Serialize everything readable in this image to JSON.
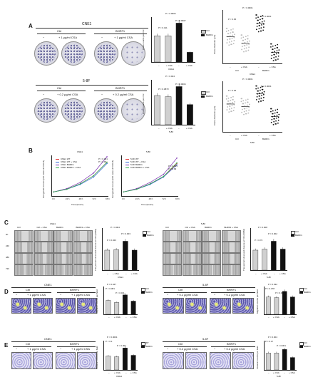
{
  "panels": {
    "A": {
      "letter": "A",
      "cne1": {
        "cell_line": "CNE1",
        "ctrl": "Ctrl",
        "bhrf1": "BHRF1",
        "neg": "−",
        "csa": "+ 1 μg/ml CSA",
        "bar_p_top": "P = 0.0004",
        "bar_p_left": "P = 0.411",
        "bar_p_right": "P = 0.0007",
        "scatter_p_top": "P < 0.0001",
        "scatter_p_left": "P < 0.05",
        "scatter_p_right": "P < 0.0001",
        "ylabel_bar": "Clone counts per cm²",
        "ylabel_scatter": "Clone diameter (μm)",
        "xgroup": "CNE1"
      },
      "f58": {
        "cell_line": "5-8F",
        "ctrl": "Ctrl",
        "bhrf1": "BHRF1",
        "neg": "−",
        "csa": "+ 0.2 μg/ml CSA",
        "bar_p_top": "P = 0.024",
        "bar_p_left": "P = 0.3873",
        "bar_p_right": "P = 0.0004",
        "scatter_p_top": "P < 0.0001",
        "scatter_p_left": "P < 0.25",
        "scatter_p_right": "P < 0.0001",
        "ylabel_bar": "Clone counts per cm²",
        "ylabel_scatter": "Clone diameter (μm)",
        "xgroup": "5-8F"
      },
      "legend": {
        "ctrl": "Ctrl",
        "bhrf1": "BHRF1",
        "csa": "+ CSA"
      }
    },
    "B": {
      "letter": "B",
      "cne1": {
        "title": "CNE1",
        "ylabel": "Cell growth curves (OD value of CCK-8)",
        "xlabel": "Time (hours)",
        "p1": "P = 0.031",
        "p2": "P = 0.93",
        "legend": [
          "CNE1 WT",
          "CNE1 WT + CSA",
          "CNE1 BHRF1",
          "CNE1 BHRF1 + CSA"
        ]
      },
      "f58": {
        "title": "5-8F",
        "ylabel": "Cell growth curves (OD value of CCK-8)",
        "xlabel": "Time (hours)",
        "p1": "P = 0.045",
        "p2": "P = 0.99",
        "legend": [
          "5-8F WT",
          "5-8F WT + CSA",
          "5-8F BHRF1",
          "5-8F BHRF1 + CSA"
        ]
      },
      "ticks": [
        "0 h",
        "24 h",
        "48 h",
        "72 h",
        "96 h"
      ]
    },
    "C": {
      "letter": "C",
      "cne1": {
        "title": "CNE1",
        "cols": [
          "Ctrl",
          "Ctrl + CSA",
          "BHRF1",
          "BHRF1 + CSA"
        ],
        "p_top": "P = 0.004",
        "p_left": "P = 0.323",
        "p_right": "P = 0.003",
        "ylabel": "The percent of wound closure at 72h (100%)"
      },
      "f58": {
        "title": "5-8F",
        "cols": [
          "Ctrl",
          "Ctrl + CSA",
          "BHRF1",
          "BHRF1 + CSA"
        ],
        "p_top": "P = 0.008",
        "p_left": "P = 0.72",
        "p_right": "P = 0.002",
        "ylabel": "The percent of wound closure at 72h (100%)"
      },
      "rows": [
        "0h",
        "24h",
        "48h",
        "72h"
      ],
      "csa": "+ CSA",
      "neg": "−"
    },
    "D": {
      "letter": "D",
      "cne1": {
        "title": "CNE1",
        "ctrl": "Ctrl",
        "bhrf1": "BHRF1",
        "neg": "−",
        "csa": "+ 1 μg/ml CSA",
        "p_top": "P = 0.047",
        "p_left": "P = 0.381",
        "p_right": "P = 0.011",
        "ylabel": "Migration counts per field"
      },
      "f58": {
        "title": "5-8F",
        "ctrl": "Ctrl",
        "bhrf1": "BHRF1",
        "neg": "−",
        "csa": "+ 0.2 μg/ml CSA",
        "p_top": "P = 0.032",
        "p_left": "P = 0.478",
        "p_right": "P = 0.008",
        "ylabel": "Migration counts per field"
      }
    },
    "E": {
      "letter": "E",
      "cne1": {
        "title": "CNE1",
        "ctrl": "Ctrl",
        "bhrf1": "BHRF1",
        "neg": "−",
        "csa": "+ 1 μg/ml CSA",
        "p_top": "P < 0.0001",
        "p_left": "P = 0.1",
        "p_right": "P < 0.001",
        "ylabel": "Invasion counts per field"
      },
      "f58": {
        "title": "5-8F",
        "ctrl": "Ctrl",
        "bhrf1": "BHRF1",
        "neg": "−",
        "csa": "+ 0.2 μg/ml CSA",
        "p_top": "P = 0.004",
        "p_left": "P = 0.17",
        "p_right": "P = 0.001",
        "ylabel": "Invasion counts per field"
      },
      "legend_wt": "WT"
    }
  },
  "chart_data": [
    {
      "type": "bar",
      "title": "CNE1",
      "ylabel": "Clone counts per cm²",
      "categories": [
        "Ctrl −",
        "Ctrl + CSA",
        "BHRF1 −",
        "BHRF1 + CSA"
      ],
      "values": [
        35,
        35,
        52,
        13
      ],
      "ylim": [
        0,
        60
      ]
    },
    {
      "type": "scatter",
      "ylabel": "Clone diameter (μm)",
      "categories": [
        "Ctrl −",
        "Ctrl + CSA",
        "BHRF1 −",
        "BHRF1 + CSA"
      ],
      "values": [
        60,
        45,
        90,
        25
      ],
      "ylim": [
        0,
        120
      ]
    },
    {
      "type": "bar",
      "title": "5-8F",
      "ylabel": "Clone counts per cm²",
      "categories": [
        "Ctrl −",
        "Ctrl + CSA",
        "BHRF1 −",
        "BHRF1 + CSA"
      ],
      "values": [
        130,
        125,
        170,
        90
      ],
      "ylim": [
        0,
        200
      ]
    },
    {
      "type": "scatter",
      "ylabel": "Clone diameter (μm)",
      "categories": [
        "Ctrl −",
        "Ctrl + CSA",
        "BHRF1 −",
        "BHRF1 + CSA"
      ],
      "values": [
        55,
        50,
        75,
        30
      ],
      "ylim": [
        0,
        100
      ]
    },
    {
      "type": "line",
      "title": "CNE1",
      "xlabel": "Time (hours)",
      "ylabel": "Cell growth curves (OD value of CCK-8)",
      "x": [
        0,
        24,
        48,
        72,
        96
      ],
      "series": [
        {
          "name": "CNE1 WT",
          "values": [
            0.3,
            0.5,
            0.9,
            1.5,
            2.5
          ]
        },
        {
          "name": "CNE1 WT + CSA",
          "values": [
            0.3,
            0.5,
            0.85,
            1.4,
            2.4
          ]
        },
        {
          "name": "CNE1 BHRF1",
          "values": [
            0.3,
            0.55,
            1.0,
            1.7,
            2.9
          ]
        },
        {
          "name": "CNE1 BHRF1 + CSA",
          "values": [
            0.3,
            0.5,
            0.9,
            1.5,
            2.5
          ]
        }
      ],
      "ylim": [
        0,
        3
      ]
    },
    {
      "type": "line",
      "title": "5-8F",
      "xlabel": "Time (hours)",
      "ylabel": "Cell growth curves (OD value of CCK-8)",
      "x": [
        0,
        24,
        48,
        72,
        96
      ],
      "series": [
        {
          "name": "5-8F WT",
          "values": [
            0.3,
            0.5,
            0.9,
            1.4,
            2.4
          ]
        },
        {
          "name": "5-8F WT + CSA",
          "values": [
            0.3,
            0.5,
            0.85,
            1.4,
            2.3
          ]
        },
        {
          "name": "5-8F BHRF1",
          "values": [
            0.3,
            0.55,
            1.0,
            1.6,
            2.8
          ]
        },
        {
          "name": "5-8F BHRF1 + CSA",
          "values": [
            0.3,
            0.5,
            0.9,
            1.45,
            2.45
          ]
        }
      ],
      "ylim": [
        0,
        3
      ]
    },
    {
      "type": "bar",
      "title": "CNE1",
      "ylabel": "The percent of wound closure at 72h (100%)",
      "categories": [
        "Ctrl −",
        "Ctrl + CSA",
        "BHRF1 −",
        "BHRF1 + CSA"
      ],
      "values": [
        0.38,
        0.39,
        0.55,
        0.38
      ],
      "ylim": [
        0,
        0.8
      ]
    },
    {
      "type": "bar",
      "title": "5-8F",
      "ylabel": "The percent of wound closure at 72h (100%)",
      "categories": [
        "Ctrl −",
        "Ctrl + CSA",
        "BHRF1 −",
        "BHRF1 + CSA"
      ],
      "values": [
        0.38,
        0.4,
        0.55,
        0.4
      ],
      "ylim": [
        0,
        0.8
      ]
    },
    {
      "type": "bar",
      "title": "CNE1",
      "ylabel": "Migration counts per field",
      "categories": [
        "Ctrl −",
        "Ctrl + CSA",
        "BHRF1 −",
        "BHRF1 + CSA"
      ],
      "values": [
        200,
        170,
        280,
        190
      ],
      "ylim": [
        0,
        400
      ]
    },
    {
      "type": "bar",
      "title": "5-8F",
      "ylabel": "Migration counts per field",
      "categories": [
        "Ctrl −",
        "Ctrl + CSA",
        "BHRF1 −",
        "BHRF1 + CSA"
      ],
      "values": [
        250,
        240,
        330,
        250
      ],
      "ylim": [
        0,
        400
      ]
    },
    {
      "type": "bar",
      "title": "CNE1",
      "ylabel": "Invasion counts per field",
      "categories": [
        "Ctrl −",
        "Ctrl + CSA",
        "BHRF1 −",
        "BHRF1 + CSA"
      ],
      "values": [
        190,
        180,
        300,
        200
      ],
      "ylim": [
        0,
        400
      ]
    },
    {
      "type": "bar",
      "title": "5-8F",
      "ylabel": "Invasion counts per field",
      "categories": [
        "Ctrl −",
        "Ctrl + CSA",
        "BHRF1 −",
        "BHRF1 + CSA"
      ],
      "values": [
        230,
        230,
        280,
        170
      ],
      "ylim": [
        0,
        400
      ]
    }
  ],
  "colors": {
    "ctrl": "#d0d0d0",
    "bhrf1": "#111111",
    "scatter_ctrl": "#b8b8b8",
    "scatter_bhrf1": "#111111",
    "wt": "#e23b3b",
    "wt_csa": "#2e6bd8",
    "bhrf1_line": "#7a2fb0",
    "bhrf1_csa": "#2bb24a"
  }
}
